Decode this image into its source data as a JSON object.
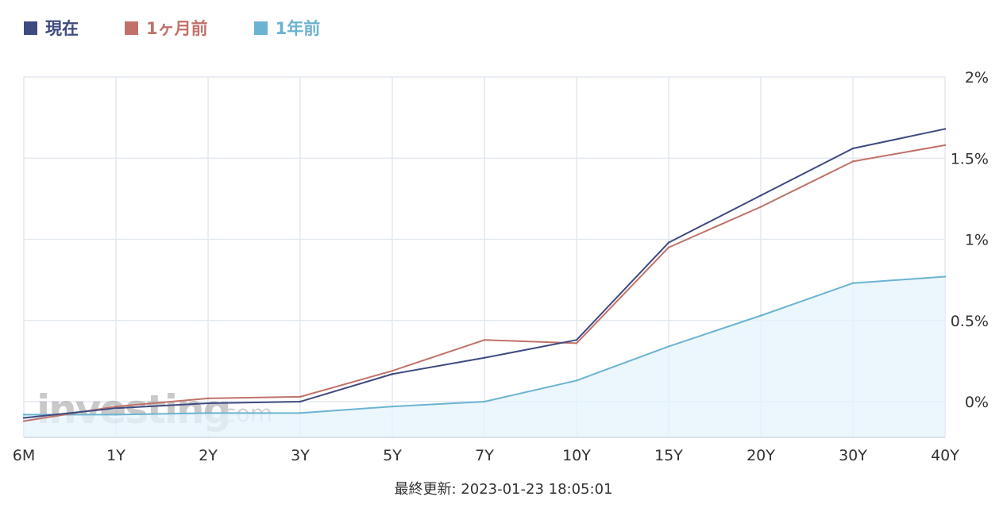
{
  "legend": [
    {
      "label": "現在",
      "color": "#3f4a80"
    },
    {
      "label": "1ヶ月前",
      "color": "#c0726a"
    },
    {
      "label": "1年前",
      "color": "#6bb3d1"
    }
  ],
  "footer": {
    "text": "最終更新: 2023-01-23 18:05:01"
  },
  "watermark": {
    "text_main": "investing",
    "text_suffix": ".com"
  },
  "chart_data": {
    "type": "line",
    "categories": [
      "6M",
      "1Y",
      "2Y",
      "3Y",
      "5Y",
      "7Y",
      "10Y",
      "15Y",
      "20Y",
      "30Y",
      "40Y"
    ],
    "series": [
      {
        "name": "現在",
        "color": "#3f4a80",
        "area": false,
        "values": [
          -0.1,
          -0.04,
          -0.01,
          0.0,
          0.17,
          0.27,
          0.38,
          0.98,
          1.27,
          1.56,
          1.68
        ]
      },
      {
        "name": "1ヶ月前",
        "color": "#c0726a",
        "area": false,
        "values": [
          -0.12,
          -0.03,
          0.02,
          0.03,
          0.19,
          0.38,
          0.36,
          0.95,
          1.2,
          1.48,
          1.58
        ]
      },
      {
        "name": "1年前",
        "color": "#6bb3d1",
        "area": true,
        "values": [
          -0.08,
          -0.08,
          -0.07,
          -0.07,
          -0.03,
          0.0,
          0.13,
          0.34,
          0.53,
          0.73,
          0.77
        ]
      }
    ],
    "y_ticks": [
      {
        "value": 2,
        "label": "2%"
      },
      {
        "value": 1.5,
        "label": "1.5%"
      },
      {
        "value": 1,
        "label": "1%"
      },
      {
        "value": 0.5,
        "label": "0.5%"
      },
      {
        "value": 0,
        "label": "0%"
      }
    ],
    "ylim": [
      -0.22,
      2
    ],
    "grid": true,
    "legend_position": "top-left",
    "y_axis_side": "right"
  }
}
